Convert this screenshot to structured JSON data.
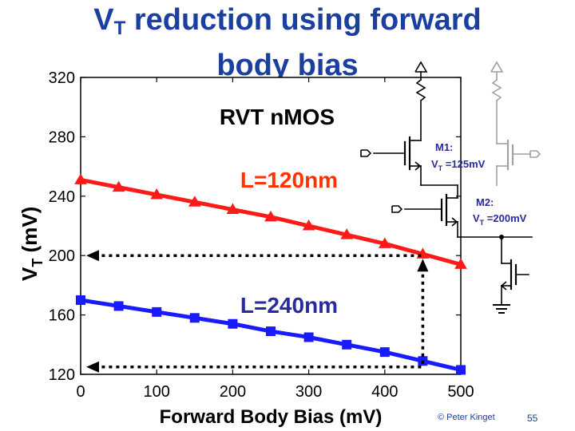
{
  "slide": {
    "title_line1_prefix": "V",
    "title_line1_sub": "T",
    "title_line1_rest": " reduction using forward",
    "title_line2": "body bias",
    "copyright": "© Peter Kinget",
    "page_number": "55"
  },
  "chart_data": {
    "type": "line",
    "xlabel": "Forward Body Bias (mV)",
    "ylabel_main": "V",
    "ylabel_sub": "T",
    "ylabel_unit": " (mV)",
    "xlim": [
      0,
      500
    ],
    "ylim": [
      120,
      320
    ],
    "xticks": [
      0,
      100,
      200,
      300,
      400,
      500
    ],
    "yticks": [
      120,
      160,
      200,
      240,
      280,
      320
    ],
    "grid": false,
    "x": [
      0,
      50,
      100,
      150,
      200,
      250,
      300,
      350,
      400,
      450,
      500
    ],
    "series": [
      {
        "name": "L=120nm",
        "color": "#ff1a1a",
        "marker": "triangle",
        "values": [
          251,
          246,
          241,
          236,
          231,
          226,
          220,
          214,
          208,
          201,
          194
        ]
      },
      {
        "name": "L=240nm",
        "color": "#1a1aff",
        "marker": "square",
        "values": [
          170,
          166,
          162,
          158,
          154,
          149,
          145,
          140,
          135,
          129,
          123
        ]
      }
    ],
    "annotations": {
      "device_label": "RVT nMOS",
      "arrows": [
        {
          "x": 450,
          "y": 200
        },
        {
          "x": 450,
          "y": 125
        }
      ],
      "colors": {
        "text_dark": "#000000",
        "label_red": "#ff3300",
        "label_blue": "#2a2aa0"
      }
    }
  },
  "circuit": {
    "m1_label": "M1:",
    "m1_vt_prefix": "V",
    "m1_vt_sub": "T",
    "m1_vt_value": " =125mV",
    "m2_label": "M2:",
    "m2_vt_prefix": "V",
    "m2_vt_sub": "T",
    "m2_vt_value": " =200mV",
    "label_color": "#2a2aa0"
  }
}
